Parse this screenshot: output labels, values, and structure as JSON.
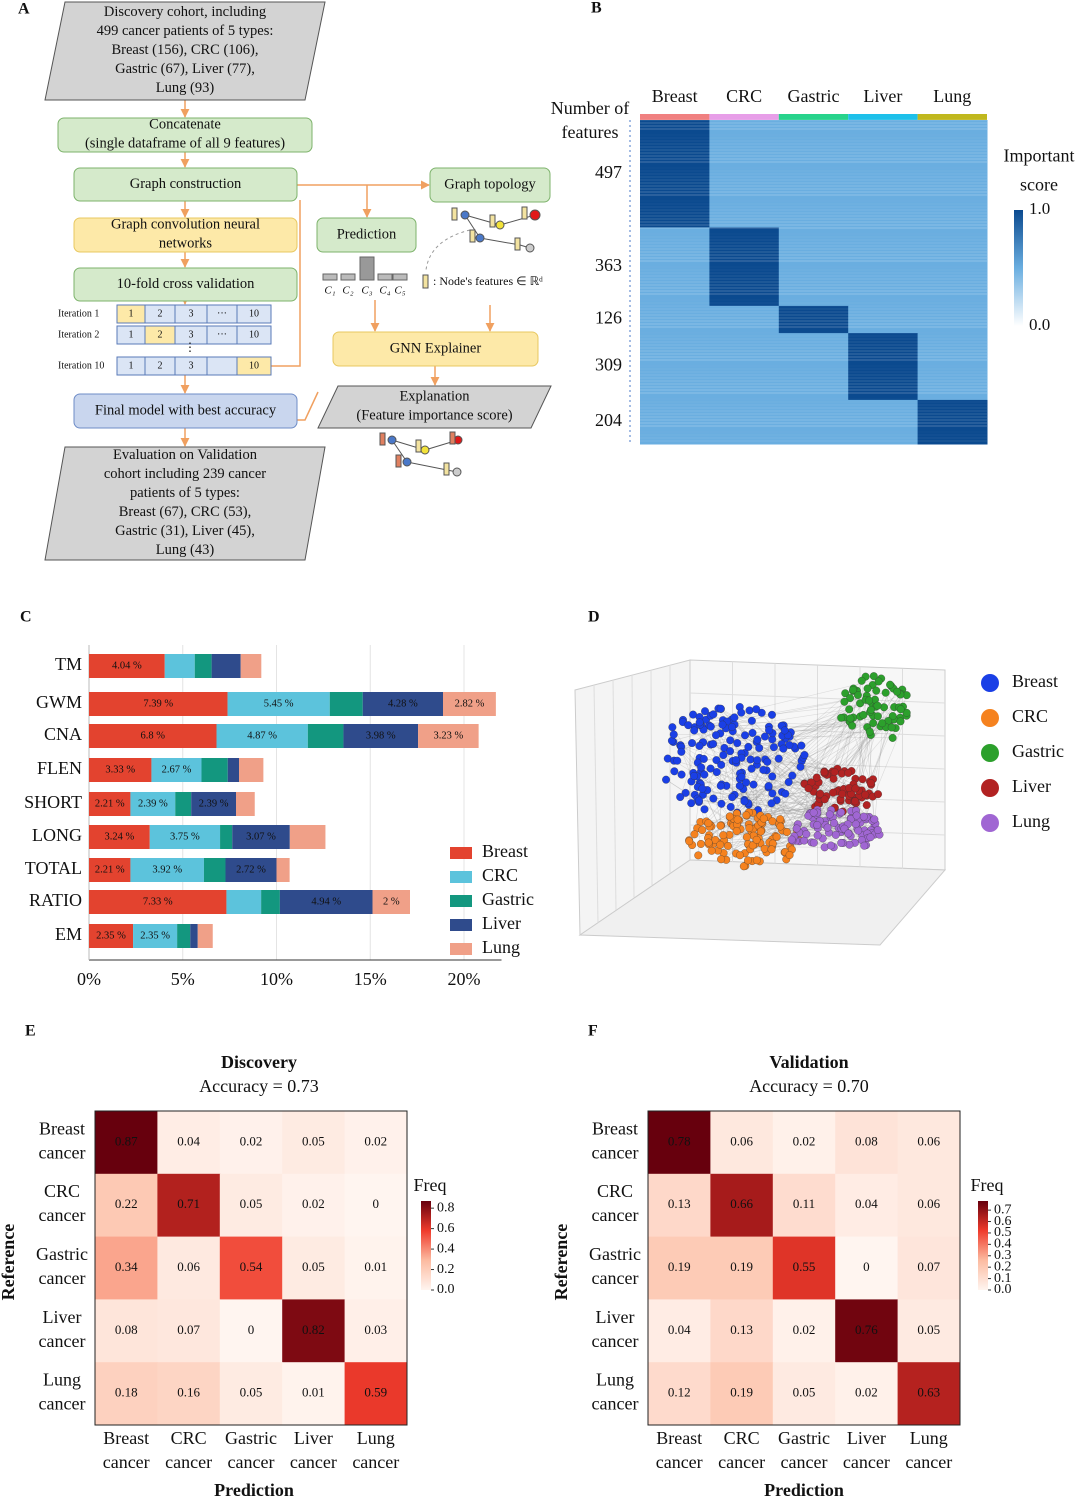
{
  "panel_labels": [
    "A",
    "B",
    "C",
    "D",
    "E",
    "F"
  ],
  "diagram": {
    "nodes": [
      {
        "label": "Discovery cohort, including\n499 cancer patients of 5 types:\nBreast (156), CRC (106),\nGastric (67), Liver (77),\nLung (93)"
      },
      {
        "label": "Concatenate\n(single dataframe of all 9 features)"
      },
      {
        "label": "Graph construction"
      },
      {
        "label": "Graph convolution neural\nnetworks"
      },
      {
        "label": "10-fold cross validation"
      },
      {
        "label": "Final model with best accuracy"
      },
      {
        "label": "Evaluation on Validation\ncohort including 239 cancer\npatients of 5 types:\nBreast (67), CRC (53),\nGastric (31), Liver (45),\nLung (43)"
      },
      {
        "label": "Graph topology"
      },
      {
        "label": "Prediction"
      },
      {
        "label": "GNN Explainer"
      },
      {
        "label": "Explanation\n(Feature importance score)"
      }
    ],
    "iteration_table": {
      "rows": [
        {
          "label": "Iteration 1",
          "cells": [
            1,
            2,
            3,
            "···",
            10
          ]
        },
        {
          "label": "Iteration 2",
          "cells": [
            1,
            2,
            3,
            "···",
            10
          ]
        },
        {
          "label": "Iteration 10",
          "cells": [
            1,
            2,
            3,
            10
          ]
        }
      ],
      "ellipsis": "⋮"
    },
    "classes": [
      "C₁",
      "C₂",
      "C₃",
      "C₄",
      "C₅"
    ],
    "node_features_note": ": Node's features ∈ ℝᵈ"
  },
  "chart_data": [
    {
      "type": "heatmap",
      "y_label": "Number of\nfeatures",
      "categories": [
        "Breast",
        "CRC",
        "Gastric",
        "Liver",
        "Lung"
      ],
      "category_colors": [
        "#f08080",
        "#e79ee8",
        "#27d38c",
        "#1ec0ea",
        "#c0b81e"
      ],
      "feature_counts": [
        497,
        363,
        126,
        309,
        204
      ],
      "values": [
        [
          1,
          0.5,
          0.5,
          0.5,
          0.5
        ],
        [
          0.5,
          1,
          0.5,
          0.5,
          0.5
        ],
        [
          0.5,
          0.5,
          1,
          0.5,
          0.5
        ],
        [
          0.5,
          0.5,
          0.5,
          1,
          0.5
        ],
        [
          0.5,
          0.5,
          0.5,
          0.5,
          1
        ]
      ],
      "colorbar_title": "Important\nscore",
      "clim": [
        0,
        1
      ],
      "cticks": [
        {
          "value": 1,
          "label": "1.0"
        },
        {
          "value": 0,
          "label": "0.0"
        }
      ],
      "cmap": [
        "#ffffff",
        "#6aaee0",
        "#0b4a8f"
      ]
    },
    {
      "type": "stacked_barh",
      "categories": [
        "TM",
        "GWM",
        "CNA",
        "FLEN",
        "SHORT",
        "LONG",
        "TOTAL",
        "RATIO",
        "EM"
      ],
      "series": [
        {
          "name": "Breast",
          "color": "#e3432f",
          "values": [
            4.04,
            7.39,
            6.8,
            3.33,
            2.21,
            3.24,
            2.21,
            7.33,
            2.35
          ],
          "value_labels": [
            "4.04 %",
            "7.39 %",
            "6.8 %",
            "3.33 %",
            "2.21 %",
            "3.24 %",
            "2.21 %",
            "7.33 %",
            "2.35 %"
          ]
        },
        {
          "name": "CRC",
          "color": "#5cc3dc",
          "values": [
            1.6,
            5.45,
            4.87,
            2.67,
            2.39,
            3.75,
            3.92,
            1.85,
            2.35
          ],
          "value_labels": [
            null,
            "5.45 %",
            "4.87 %",
            "2.67 %",
            "2.39 %",
            "3.75 %",
            "3.92 %",
            null,
            "2.35 %"
          ]
        },
        {
          "name": "Gastric",
          "color": "#13977f",
          "values": [
            0.9,
            1.76,
            1.9,
            1.4,
            0.85,
            0.65,
            1.15,
            1.0,
            0.7
          ]
        },
        {
          "name": "Liver",
          "color": "#2f4b8c",
          "values": [
            1.55,
            4.28,
            3.98,
            0.6,
            2.39,
            3.07,
            2.72,
            4.94,
            0.4
          ],
          "value_labels": [
            null,
            "4.28 %",
            "3.98 %",
            null,
            "2.39 %",
            "3.07 %",
            "2.72 %",
            "4.94 %",
            null
          ]
        },
        {
          "name": "Lung",
          "color": "#f0a088",
          "values": [
            1.1,
            2.82,
            3.23,
            1.3,
            1.0,
            1.9,
            0.7,
            2,
            0.8
          ],
          "value_labels": [
            null,
            "2.82 %",
            "3.23 %",
            null,
            null,
            null,
            null,
            "2 %",
            null
          ]
        }
      ],
      "xlim": [
        0,
        22
      ],
      "xticks": [
        {
          "value": 0,
          "label": "0%"
        },
        {
          "value": 5,
          "label": "5%"
        },
        {
          "value": 10,
          "label": "10%"
        },
        {
          "value": 15,
          "label": "15%"
        },
        {
          "value": 20,
          "label": "20%"
        }
      ],
      "grid": true
    },
    {
      "type": "scatter3d",
      "series": [
        {
          "name": "Breast",
          "color": "#1a3fe6"
        },
        {
          "name": "CRC",
          "color": "#f5821f"
        },
        {
          "name": "Gastric",
          "color": "#2ca02c"
        },
        {
          "name": "Liver",
          "color": "#b22222"
        },
        {
          "name": "Lung",
          "color": "#a066d3"
        }
      ]
    },
    {
      "type": "confusion",
      "title": "Discovery",
      "subtitle": "Accuracy = 0.73",
      "x_label": "Prediction",
      "y_label": "Reference",
      "categories": [
        "Breast\ncancer",
        "CRC\ncancer",
        "Gastric\ncancer",
        "Liver\ncancer",
        "Lung\ncancer"
      ],
      "values": [
        [
          0.87,
          0.04,
          0.02,
          0.05,
          0.02
        ],
        [
          0.22,
          0.71,
          0.05,
          0.02,
          0
        ],
        [
          0.34,
          0.06,
          0.54,
          0.05,
          0.01
        ],
        [
          0.08,
          0.07,
          0,
          0.82,
          0.03
        ],
        [
          0.18,
          0.16,
          0.05,
          0.01,
          0.59
        ]
      ],
      "colorbar_title": "Freq",
      "clim": [
        0,
        0.87
      ],
      "cticks": [
        {
          "value": 0,
          "label": "0.0"
        },
        0.2,
        0.4,
        0.6,
        0.8
      ],
      "cmap": [
        "#fff5f0",
        "#fcbba1",
        "#ef3b2c",
        "#67000d"
      ]
    },
    {
      "type": "confusion",
      "title": "Validation",
      "subtitle": "Accuracy = 0.70",
      "x_label": "Prediction",
      "y_label": "Reference",
      "categories": [
        "Breast\ncancer",
        "CRC\ncancer",
        "Gastric\ncancer",
        "Liver\ncancer",
        "Lung\ncancer"
      ],
      "values": [
        [
          0.78,
          0.06,
          0.02,
          0.08,
          0.06
        ],
        [
          0.13,
          0.66,
          0.11,
          0.04,
          0.06
        ],
        [
          0.19,
          0.19,
          0.55,
          0,
          0.07
        ],
        [
          0.04,
          0.13,
          0.02,
          0.76,
          0.05
        ],
        [
          0.12,
          0.19,
          0.05,
          0.02,
          0.63
        ]
      ],
      "colorbar_title": "Freq",
      "clim": [
        0,
        0.78
      ],
      "cticks": [
        {
          "value": 0,
          "label": "0.0"
        },
        0.1,
        0.2,
        0.3,
        0.4,
        0.5,
        0.6,
        0.7
      ],
      "cmap": [
        "#fff5f0",
        "#fcbba1",
        "#ef3b2c",
        "#67000d"
      ]
    }
  ]
}
